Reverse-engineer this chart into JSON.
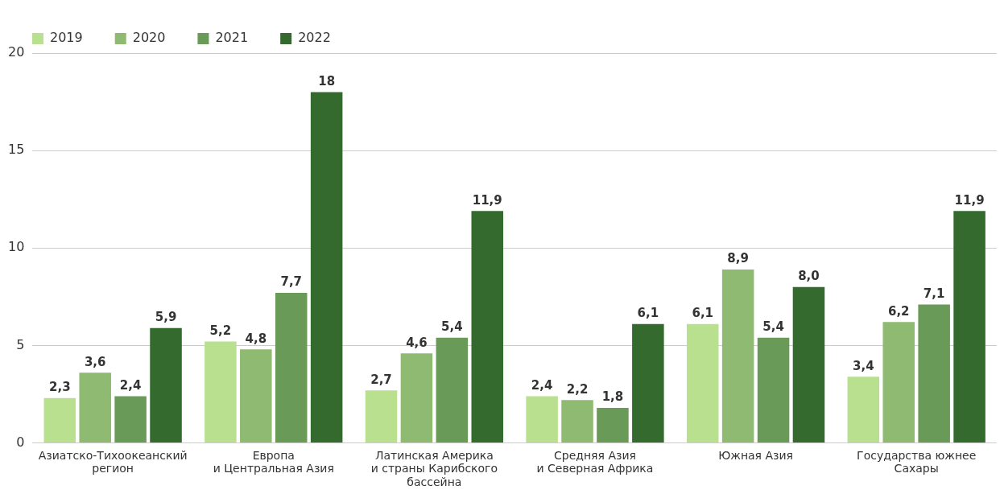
{
  "chart_data": {
    "type": "bar",
    "categories": [
      "Азиатско-Тихоокеанский\nрегион",
      "Европа\nи Центральная Азия",
      "Латинская Америка\nи страны Карибского\nбассейна",
      "Средняя Азия\nи Северная Африка",
      "Южная Азия",
      "Государства южнее\nСахары"
    ],
    "series": [
      {
        "name": "2019",
        "color": "#b8e08f",
        "values": [
          2.3,
          5.2,
          2.7,
          2.4,
          6.1,
          3.4
        ],
        "value_labels": [
          "2,3",
          "5,2",
          "2,7",
          "2,4",
          "6,1",
          "3,4"
        ]
      },
      {
        "name": "2020",
        "color": "#8fba72",
        "values": [
          3.6,
          4.8,
          4.6,
          2.2,
          8.9,
          6.2
        ],
        "value_labels": [
          "3,6",
          "4,8",
          "4,6",
          "2,2",
          "8,9",
          "6,2"
        ]
      },
      {
        "name": "2021",
        "color": "#6a9a58",
        "values": [
          2.4,
          7.7,
          5.4,
          1.8,
          5.4,
          7.1
        ],
        "value_labels": [
          "2,4",
          "7,7",
          "5,4",
          "1,8",
          "5,4",
          "7,1"
        ]
      },
      {
        "name": "2022",
        "color": "#356a2f",
        "values": [
          5.9,
          18,
          11.9,
          6.1,
          8.0,
          11.9
        ],
        "value_labels": [
          "5,9",
          "18",
          "11,9",
          "6,1",
          "8,0",
          "11,9"
        ]
      }
    ],
    "ylim": [
      0,
      20
    ],
    "yticks": [
      0,
      5,
      10,
      15,
      20
    ],
    "grid": "y",
    "legend": "top left"
  }
}
